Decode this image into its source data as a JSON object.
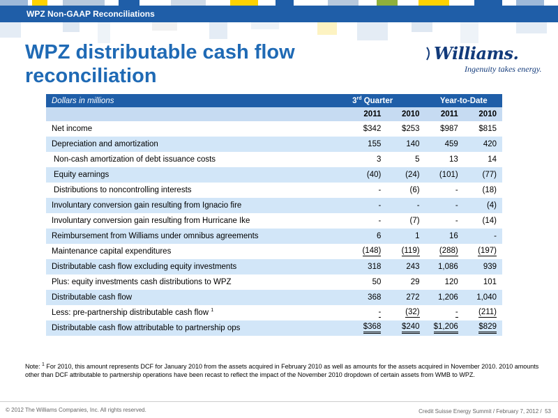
{
  "header": {
    "section_label": "WPZ Non-GAAP Reconciliations",
    "bar_color": "#1f5ea8"
  },
  "title": {
    "line1": "WPZ distributable cash flow",
    "line2": "reconciliation"
  },
  "logo": {
    "wordmark": "Williams.",
    "tagline": "Ingenuity takes energy.",
    "icon": "williams-logo-icon"
  },
  "table": {
    "units_label": "Dollars in millions",
    "group_quarter_prefix": "3",
    "group_quarter_sup": "rd",
    "group_quarter_suffix": " Quarter",
    "group_ytd": "Year-to-Date",
    "year_headers": [
      "2011",
      "2010",
      "2011",
      "2010"
    ],
    "rows": [
      {
        "label": "Net  income",
        "values": [
          "$342",
          "$253",
          "$987",
          "$815"
        ]
      },
      {
        "label": "Depreciation and amortization",
        "values": [
          "155",
          "140",
          "459",
          "420"
        ]
      },
      {
        "label": "Non-cash amortization of debt issuance costs",
        "values": [
          "3",
          "5",
          "13",
          "14"
        ]
      },
      {
        "label": "Equity earnings",
        "values": [
          "(40)",
          "(24)",
          "(101)",
          "(77)"
        ]
      },
      {
        "label": "Distributions to noncontrolling interests",
        "values": [
          "-",
          "(6)",
          "-",
          "(18)"
        ]
      },
      {
        "label": "Involuntary conversion gain resulting from Ignacio fire",
        "values": [
          "-",
          "-",
          "-",
          "(4)"
        ]
      },
      {
        "label": "Involuntary conversion gain resulting from Hurricane Ike",
        "values": [
          "-",
          "(7)",
          "-",
          "(14)"
        ]
      },
      {
        "label": "Reimbursement from Williams under omnibus agreements",
        "values": [
          "6",
          "1",
          "16",
          "-"
        ]
      },
      {
        "label": "Maintenance capital expenditures",
        "values": [
          "(148)",
          "(119)",
          "(288)",
          "(197)"
        ]
      },
      {
        "label": "Distributable cash flow excluding equity investments",
        "values": [
          "318",
          "243",
          "1,086",
          "939"
        ]
      },
      {
        "label": "Plus: equity investments cash distributions to WPZ",
        "values": [
          "50",
          "29",
          "120",
          "101"
        ]
      },
      {
        "label": "Distributable  cash flow",
        "values": [
          "368",
          "272",
          "1,206",
          "1,040"
        ]
      },
      {
        "label": "Less: pre-partnership distributable cash flow",
        "footnote_ref": "1",
        "values": [
          "-",
          "(32)",
          "-",
          "(211)"
        ]
      },
      {
        "label": "Distributable  cash flow attributable to partnership ops",
        "values": [
          "$368",
          "$240",
          "$1,206",
          "$829"
        ]
      }
    ]
  },
  "note": {
    "prefix": "Note: ",
    "ref": "1",
    "text": " For 2010, this amount represents DCF for January 2010 from the assets acquired in February 2010 as well as amounts for the assets acquired in November 2010.  2010 amounts other than DCF attributable to partnership operations have been recast to reflect the impact of the November 2010 dropdown of certain assets from WMB to WPZ."
  },
  "footer": {
    "copyright": "© 2012 The Williams Companies, Inc. All rights reserved.",
    "event": "Credit Suisse Energy Summit / February 7, 2012 /",
    "page_number": "53"
  }
}
